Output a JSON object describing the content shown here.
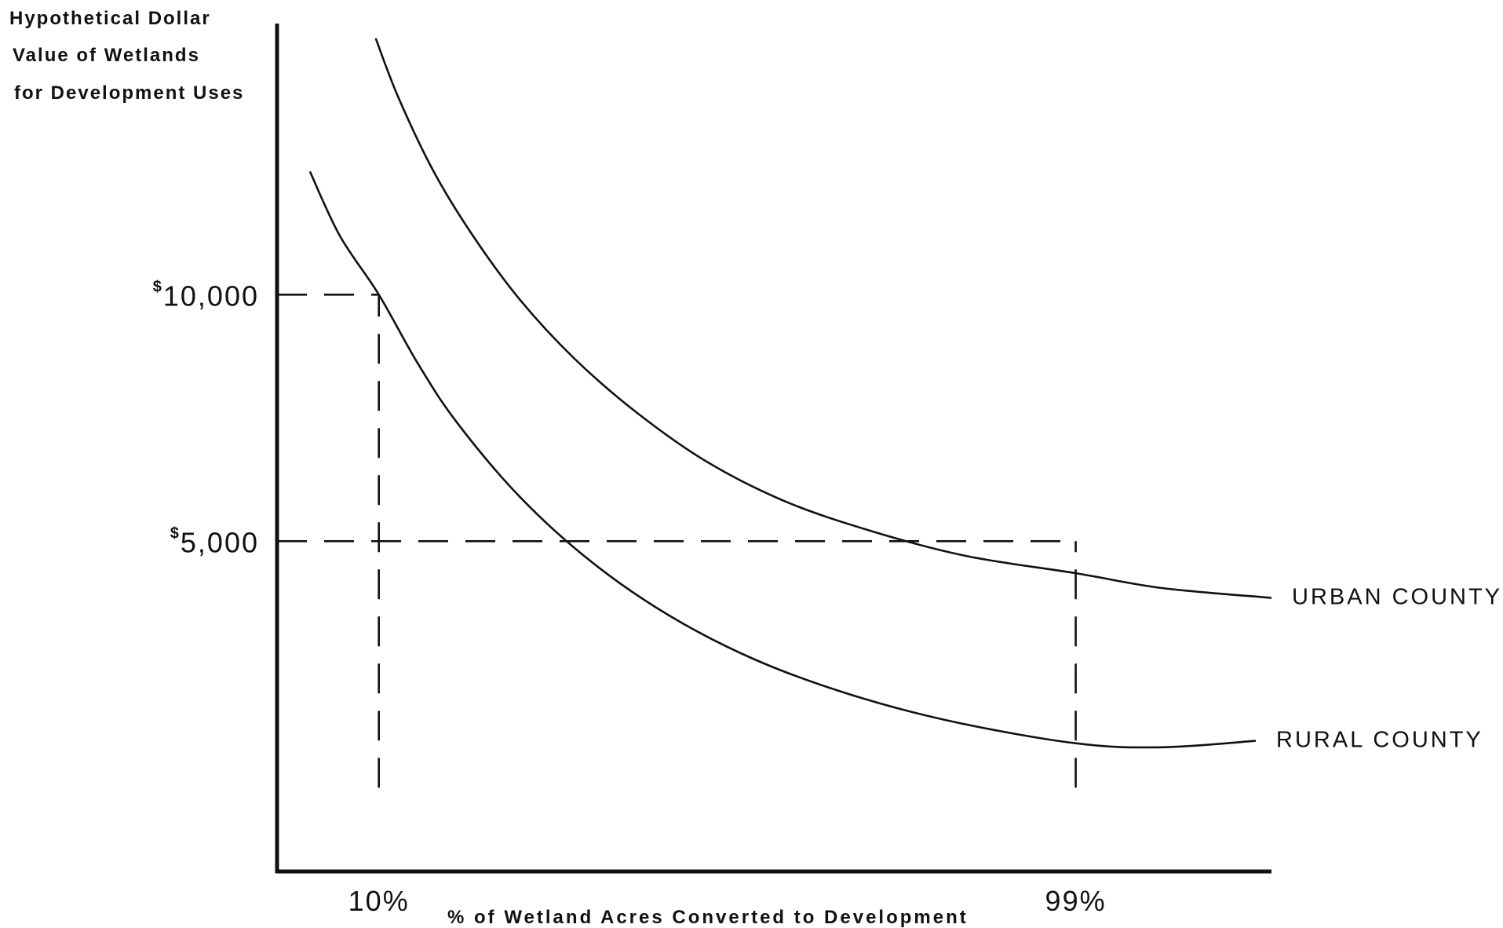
{
  "chart_data": {
    "type": "line",
    "ylabel_lines": [
      "Hypothetical Dollar",
      "Value of Wetlands",
      "for Development Uses"
    ],
    "xlabel": "% of Wetland Acres Converted to Development",
    "x_ticks": [
      {
        "value": 10,
        "label": "10%"
      },
      {
        "value": 99,
        "label": "99%"
      }
    ],
    "y_ticks": [
      {
        "value": 10000,
        "label": "10,000",
        "prefix": "$"
      },
      {
        "value": 5000,
        "label": "5,000",
        "prefix": "$"
      }
    ],
    "xlim": [
      -3,
      124
    ],
    "ylim": [
      -1700,
      15500
    ],
    "series": [
      {
        "name": "URBAN COUNTY",
        "x": [
          9.6,
          12.5,
          17,
          22,
          28,
          35,
          43,
          52,
          62,
          73,
          85,
          99,
          110,
          124
        ],
        "y": [
          15200,
          14000,
          12500,
          11200,
          9900,
          8700,
          7600,
          6600,
          5800,
          5200,
          4700,
          4350,
          4050,
          3850
        ]
      },
      {
        "name": "RURAL COUNTY",
        "x": [
          1.2,
          5,
          10,
          15,
          20,
          28,
          37,
          47,
          58,
          70,
          83,
          99,
          110,
          122
        ],
        "y": [
          12500,
          11200,
          10000,
          8600,
          7400,
          5900,
          4600,
          3500,
          2600,
          1900,
          1350,
          900,
          820,
          950
        ]
      }
    ],
    "reference_lines": [
      {
        "axis": "x",
        "value": 10,
        "from": 0,
        "to": 10000
      },
      {
        "axis": "x",
        "value": 99,
        "from": 0,
        "to": 5000
      },
      {
        "axis": "y",
        "value": 10000,
        "from": 0,
        "to": 10
      },
      {
        "axis": "y",
        "value": 5000,
        "from": 0,
        "to": 99
      }
    ]
  }
}
